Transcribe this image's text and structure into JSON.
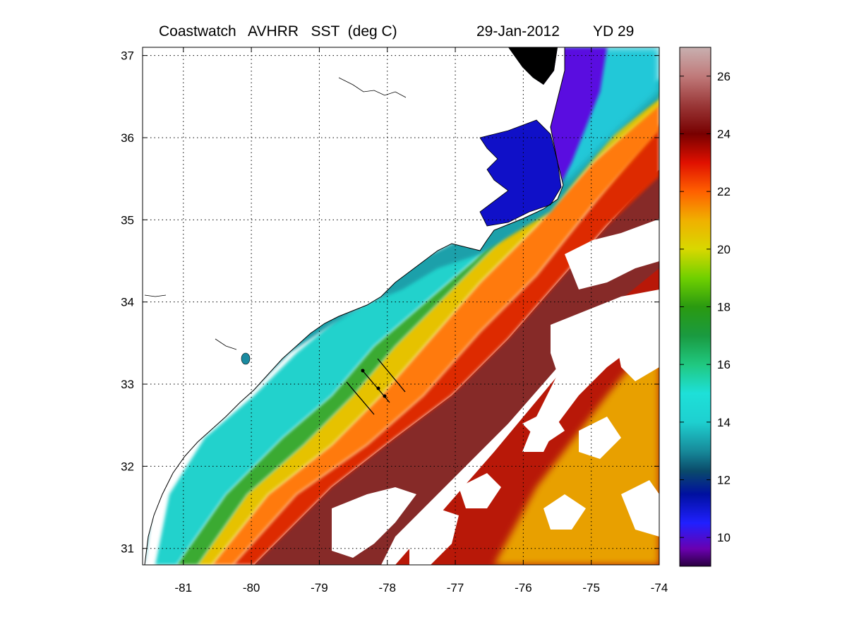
{
  "title": {
    "product": "Coastwatch   AVHRR   SST  (deg C)",
    "date": "29-Jan-2012",
    "yearday": "YD 29"
  },
  "chart_data": {
    "type": "heatmap",
    "variable": "SST (deg C)",
    "x_axis": {
      "range": [
        -81.6,
        -74
      ],
      "ticks": [
        -81,
        -80,
        -79,
        -78,
        -77,
        -76,
        -75,
        -74
      ],
      "tick_labels": [
        "-81",
        "-80",
        "-79",
        "-78",
        "-77",
        "-76",
        "-75",
        "-74"
      ]
    },
    "y_axis": {
      "range": [
        30.8,
        37.1
      ],
      "ticks": [
        31,
        32,
        33,
        34,
        35,
        36,
        37
      ],
      "tick_labels": [
        "31",
        "32",
        "33",
        "34",
        "35",
        "36",
        "37"
      ]
    },
    "grid": "dotted",
    "colorbar": {
      "range": [
        9,
        27
      ],
      "ticks": [
        10,
        12,
        14,
        16,
        18,
        20,
        22,
        24,
        26
      ],
      "tick_labels": [
        "10",
        "12",
        "14",
        "16",
        "18",
        "20",
        "22",
        "24",
        "26"
      ],
      "stops": [
        {
          "value": 9,
          "color": "#2a0040"
        },
        {
          "value": 9.6,
          "color": "#6a00b0"
        },
        {
          "value": 10.5,
          "color": "#2020ff"
        },
        {
          "value": 11.5,
          "color": "#0010a0"
        },
        {
          "value": 12.3,
          "color": "#0a4a6a"
        },
        {
          "value": 13,
          "color": "#178a9a"
        },
        {
          "value": 14,
          "color": "#1ed0d0"
        },
        {
          "value": 15,
          "color": "#1ee0d8"
        },
        {
          "value": 16,
          "color": "#20c880"
        },
        {
          "value": 17,
          "color": "#1a9a40"
        },
        {
          "value": 18,
          "color": "#2a9a10"
        },
        {
          "value": 19,
          "color": "#70d000"
        },
        {
          "value": 20,
          "color": "#d8d800"
        },
        {
          "value": 21,
          "color": "#f0b000"
        },
        {
          "value": 22,
          "color": "#ff6000"
        },
        {
          "value": 23,
          "color": "#e01000"
        },
        {
          "value": 24,
          "color": "#780000"
        },
        {
          "value": 25,
          "color": "#9a3838"
        },
        {
          "value": 26,
          "color": "#c07a7a"
        },
        {
          "value": 27,
          "color": "#c8b0b0"
        }
      ]
    },
    "land_color": "#ffffff",
    "cloud_mask_color": "#ffffff"
  }
}
